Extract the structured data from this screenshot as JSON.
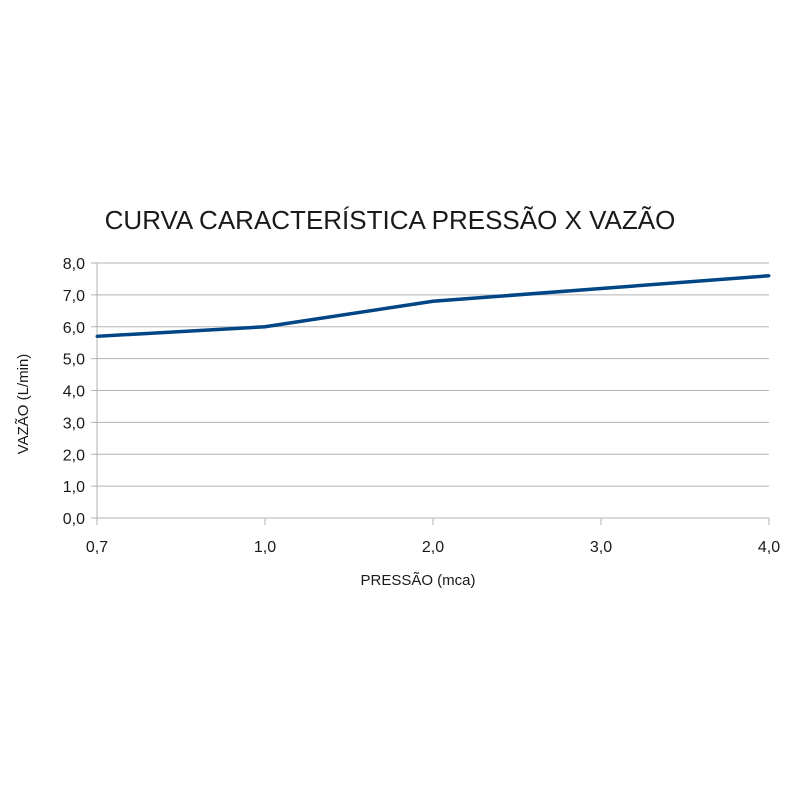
{
  "chart_data": {
    "type": "line",
    "title": "CURVA CARACTERÍSTICA PRESSÃO X VAZÃO",
    "xlabel": "PRESSÃO (mca)",
    "ylabel": "VAZÃO (L/min)",
    "x_tick_labels": [
      "0,7",
      "1,0",
      "2,0",
      "3,0",
      "4,0"
    ],
    "y_ticks": [
      0,
      1,
      2,
      3,
      4,
      5,
      6,
      7,
      8
    ],
    "y_tick_labels": [
      "0,0",
      "1,0",
      "2,0",
      "3,0",
      "4,0",
      "5,0",
      "6,0",
      "7,0",
      "8,0"
    ],
    "ylim": [
      0,
      8
    ],
    "grid": true,
    "series": [
      {
        "x": [
          "0,7",
          "1,0",
          "2,0",
          "3,0",
          "4,0"
        ],
        "values": [
          5.7,
          6.0,
          6.8,
          7.2,
          7.6
        ],
        "color": "#004586"
      }
    ]
  }
}
